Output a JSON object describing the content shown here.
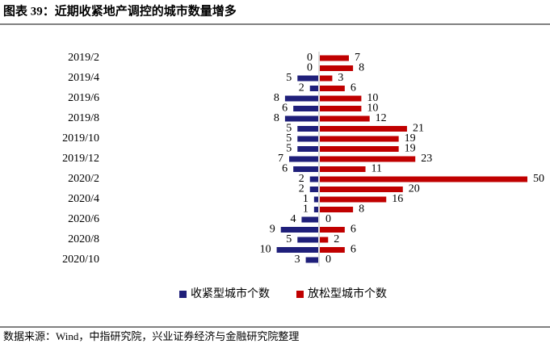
{
  "chart_data": {
    "type": "diverging_bar",
    "title": "图表 39：近期收紧地产调控的城市数量增多",
    "source": "数据来源：Wind，中指研究院，兴业证券经济与金融研究院整理",
    "categories": [
      "2019/2",
      null,
      "2019/4",
      null,
      "2019/6",
      null,
      "2019/8",
      null,
      "2019/10",
      null,
      "2019/12",
      null,
      "2020/2",
      null,
      "2020/4",
      null,
      "2020/6",
      null,
      "2020/8",
      null,
      "2020/10"
    ],
    "series": [
      {
        "name": "收紧型城市个数",
        "color": "#1f1f7a",
        "direction": "left",
        "values": [
          0,
          0,
          5,
          2,
          8,
          6,
          8,
          5,
          5,
          5,
          7,
          6,
          2,
          2,
          1,
          1,
          4,
          9,
          5,
          10,
          3
        ]
      },
      {
        "name": "放松型城市个数",
        "color": "#c00000",
        "direction": "right",
        "values": [
          7,
          8,
          3,
          6,
          10,
          10,
          12,
          21,
          19,
          19,
          23,
          11,
          50,
          20,
          16,
          8,
          0,
          6,
          2,
          6,
          0
        ]
      }
    ]
  }
}
